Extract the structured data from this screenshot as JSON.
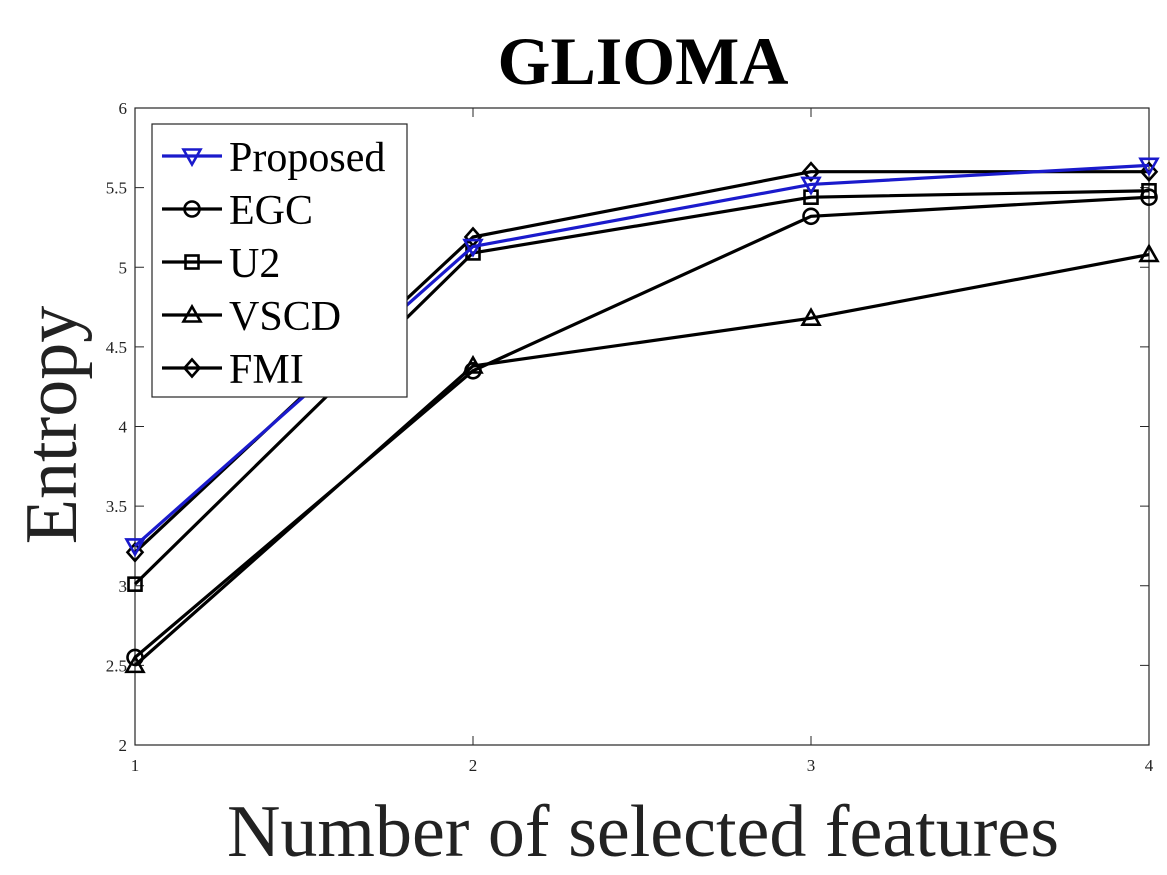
{
  "chart_data": {
    "type": "line",
    "title": "GLIOMA",
    "xlabel": "Number of selected features",
    "ylabel": "Entropy",
    "x": [
      1,
      2,
      3,
      4
    ],
    "xlim": [
      1,
      4
    ],
    "ylim": [
      2,
      6
    ],
    "xticks": [
      "1",
      "2",
      "3",
      "4"
    ],
    "yticks": [
      "2",
      "2.5",
      "3",
      "3.5",
      "4",
      "4.5",
      "5",
      "5.5",
      "6"
    ],
    "grid": false,
    "legend_position": "top-left",
    "series": [
      {
        "name": "Proposed",
        "values": [
          3.25,
          5.13,
          5.52,
          5.64
        ],
        "color": "#1a1acc",
        "marker": "triangle-down"
      },
      {
        "name": "EGC",
        "values": [
          2.55,
          4.35,
          5.32,
          5.44
        ],
        "color": "#000000",
        "marker": "circle"
      },
      {
        "name": "U2",
        "values": [
          3.01,
          5.09,
          5.44,
          5.48
        ],
        "color": "#000000",
        "marker": "square"
      },
      {
        "name": "VSCD",
        "values": [
          2.5,
          4.38,
          4.68,
          5.08
        ],
        "color": "#000000",
        "marker": "triangle-up"
      },
      {
        "name": "FMI",
        "values": [
          3.21,
          5.19,
          5.6,
          5.6
        ],
        "color": "#000000",
        "marker": "diamond"
      }
    ]
  }
}
